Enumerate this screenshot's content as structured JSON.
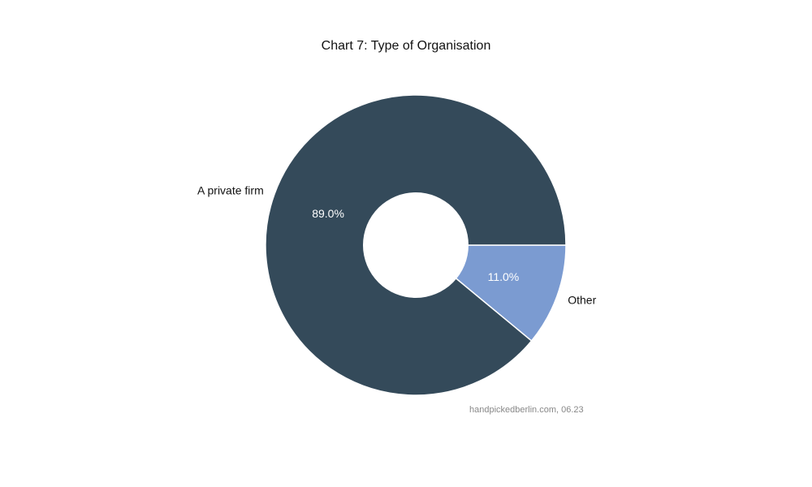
{
  "chart_data": {
    "type": "pie",
    "variant": "donut",
    "title": "Chart 7: Type of Organisation",
    "categories": [
      "Other",
      "A private firm"
    ],
    "values": [
      11.0,
      89.0
    ],
    "labels_pct": [
      "11.0%",
      "89.0%"
    ],
    "colors": [
      "#7b9bd1",
      "#344a5a"
    ],
    "legend": "none",
    "source": "handpickedberlin.com, 06.23"
  }
}
